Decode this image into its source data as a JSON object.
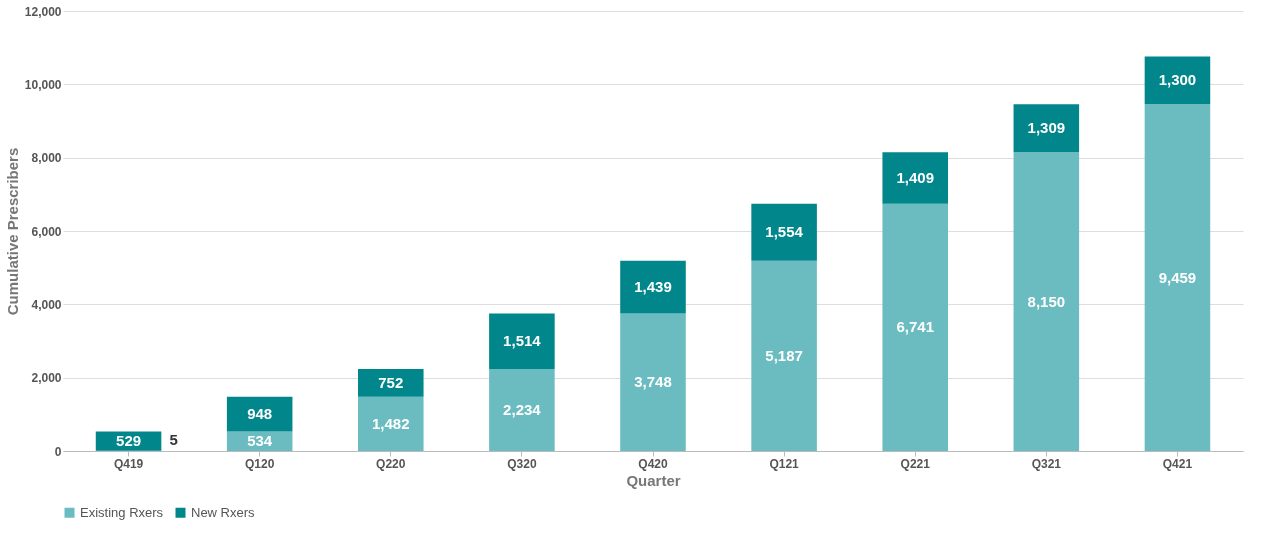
{
  "chart_data": {
    "type": "bar",
    "stacked": true,
    "xlabel": "Quarter",
    "ylabel": "Cumulative Prescribers",
    "categories": [
      "Q419",
      "Q120",
      "Q220",
      "Q320",
      "Q420",
      "Q121",
      "Q221",
      "Q321",
      "Q421"
    ],
    "series": [
      {
        "name": "Existing Rxers",
        "color": "#6bbcc0",
        "values": [
          5,
          534,
          1482,
          2234,
          3748,
          5187,
          6741,
          8150,
          9459
        ],
        "value_labels": [
          "5",
          "534",
          "1,482",
          "2,234",
          "3,748",
          "5,187",
          "6,741",
          "8,150",
          "9,459"
        ]
      },
      {
        "name": "New Rxers",
        "color": "#00868b",
        "values": [
          529,
          948,
          752,
          1514,
          1439,
          1554,
          1409,
          1309,
          1300
        ],
        "value_labels": [
          "529",
          "948",
          "752",
          "1,514",
          "1,439",
          "1,554",
          "1,409",
          "1,309",
          "1,300"
        ]
      }
    ],
    "ylim": [
      0,
      12000
    ],
    "yticks": [
      {
        "value": 0,
        "label": "0"
      },
      {
        "value": 2000,
        "label": "2,000"
      },
      {
        "value": 4000,
        "label": "4,000"
      },
      {
        "value": 6000,
        "label": "6,000"
      },
      {
        "value": 8000,
        "label": "8,000"
      },
      {
        "value": 10000,
        "label": "10,000"
      },
      {
        "value": 12000,
        "label": "12,000"
      }
    ],
    "grid": "y",
    "legend": "bottom"
  }
}
